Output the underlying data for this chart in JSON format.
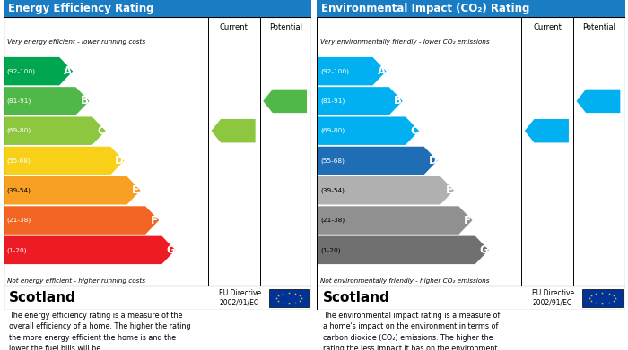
{
  "left_title": "Energy Efficiency Rating",
  "right_title": "Environmental Impact (CO₂) Rating",
  "header_bg": "#1a7dc4",
  "header_text_color": "#ffffff",
  "bands": [
    "A",
    "B",
    "C",
    "D",
    "E",
    "F",
    "G"
  ],
  "ranges": [
    "(92-100)",
    "(81-91)",
    "(69-80)",
    "(55-68)",
    "(39-54)",
    "(21-38)",
    "(1-20)"
  ],
  "ee_colors": [
    "#00a650",
    "#50b848",
    "#8dc63f",
    "#f7d017",
    "#f7a024",
    "#f26522",
    "#ed1c24"
  ],
  "co2_colors": [
    "#00b0f0",
    "#00b0f0",
    "#00b0f0",
    "#1e6db5",
    "#b0b0b0",
    "#909090",
    "#707070"
  ],
  "ee_range_colors": [
    "white",
    "white",
    "white",
    "white",
    "black",
    "white",
    "white"
  ],
  "co2_range_colors": [
    "white",
    "white",
    "white",
    "white",
    "black",
    "black",
    "black"
  ],
  "top_label_ee": "Very energy efficient - lower running costs",
  "bottom_label_ee": "Not energy efficient - higher running costs",
  "top_label_co2": "Very environmentally friendly - lower CO₂ emissions",
  "bottom_label_co2": "Not environmentally friendly - higher CO₂ emissions",
  "current_ee": 78,
  "potential_ee": 89,
  "current_co2": 78,
  "potential_co2": 88,
  "current_arrow_color_ee": "#8dc63f",
  "potential_arrow_color_ee": "#50b848",
  "current_arrow_color_co2": "#00b0f0",
  "potential_arrow_color_co2": "#00b0f0",
  "footer_text_ee": "The energy efficiency rating is a measure of the\noverall efficiency of a home. The higher the rating\nthe more energy efficient the home is and the\nlower the fuel bills will be.",
  "footer_text_co2": "The environmental impact rating is a measure of\na home's impact on the environment in terms of\ncarbon dioxide (CO₂) emissions. The higher the\nrating the less impact it has on the environment."
}
